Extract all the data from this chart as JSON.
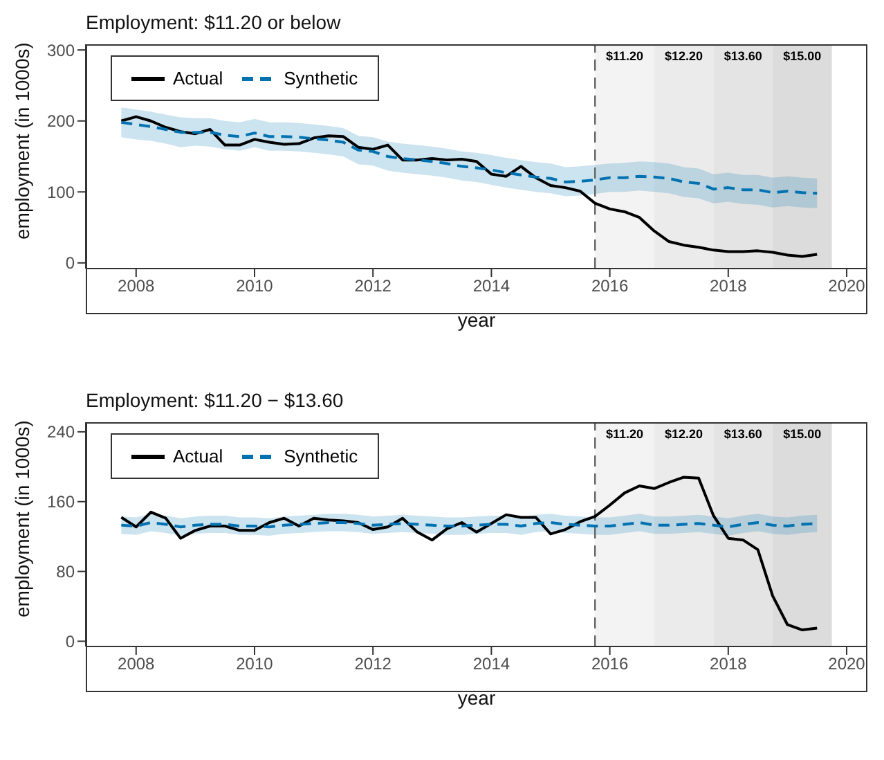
{
  "chart_data": [
    {
      "type": "line",
      "title": "Employment: $11.20 or below",
      "xlabel": "year",
      "ylabel": "employment (in 1000s)",
      "x": [
        2007.75,
        2008,
        2008.25,
        2008.5,
        2008.75,
        2009,
        2009.25,
        2009.5,
        2009.75,
        2010,
        2010.25,
        2010.5,
        2010.75,
        2011,
        2011.25,
        2011.5,
        2011.75,
        2012,
        2012.25,
        2012.5,
        2012.75,
        2013,
        2013.25,
        2013.5,
        2013.75,
        2014,
        2014.25,
        2014.5,
        2014.75,
        2015,
        2015.25,
        2015.5,
        2015.75,
        2016,
        2016.25,
        2016.5,
        2016.75,
        2017,
        2017.25,
        2017.5,
        2017.75,
        2018,
        2018.25,
        2018.5,
        2018.75,
        2019,
        2019.25,
        2019.5
      ],
      "series": [
        {
          "name": "Actual",
          "color": "#000000",
          "line_style": "solid",
          "values": [
            200,
            206,
            200,
            191,
            185,
            182,
            188,
            166,
            166,
            174,
            170,
            167,
            168,
            176,
            179,
            178,
            163,
            160,
            166,
            145,
            145,
            147,
            145,
            146,
            143,
            125,
            122,
            136,
            120,
            109,
            106,
            101,
            84,
            76,
            72,
            64,
            45,
            30,
            25,
            22,
            18,
            16,
            16,
            17,
            15,
            11,
            9,
            12
          ]
        },
        {
          "name": "Synthetic",
          "color": "#0072b2",
          "line_style": "dashed",
          "values": [
            198,
            195,
            192,
            188,
            184,
            184,
            184,
            180,
            178,
            183,
            178,
            178,
            177,
            175,
            173,
            170,
            159,
            157,
            150,
            147,
            145,
            143,
            140,
            136,
            134,
            131,
            127,
            124,
            121,
            119,
            114,
            115,
            117,
            120,
            120,
            122,
            121,
            119,
            114,
            112,
            104,
            106,
            103,
            103,
            99,
            101,
            99,
            98
          ],
          "lower": [
            177,
            174,
            172,
            168,
            163,
            165,
            164,
            160,
            158,
            163,
            158,
            158,
            157,
            155,
            153,
            150,
            139,
            137,
            130,
            127,
            125,
            123,
            120,
            116,
            114,
            110,
            106,
            103,
            100,
            98,
            94,
            95,
            97,
            100,
            100,
            102,
            100,
            98,
            93,
            91,
            84,
            86,
            83,
            82,
            78,
            80,
            78,
            77
          ],
          "upper": [
            219,
            216,
            213,
            209,
            205,
            204,
            204,
            200,
            198,
            203,
            198,
            198,
            197,
            195,
            193,
            190,
            179,
            177,
            171,
            168,
            166,
            164,
            161,
            157,
            155,
            152,
            148,
            145,
            142,
            140,
            135,
            136,
            138,
            140,
            141,
            143,
            142,
            140,
            135,
            133,
            125,
            127,
            124,
            124,
            120,
            122,
            120,
            119
          ]
        }
      ],
      "ref_lines": [
        {
          "axis": "x",
          "value": 2015.75,
          "line_style": "dashed",
          "color": "#666666"
        }
      ],
      "bands": [
        {
          "axis": "x",
          "from": 2015.75,
          "to": 2016.75,
          "label": "$11.20",
          "color": "#f3f3f3"
        },
        {
          "axis": "x",
          "from": 2016.75,
          "to": 2017.75,
          "label": "$12.20",
          "color": "#ebebeb"
        },
        {
          "axis": "x",
          "from": 2017.75,
          "to": 2018.75,
          "label": "$13.60",
          "color": "#e4e4e4"
        },
        {
          "axis": "x",
          "from": 2018.75,
          "to": 2019.75,
          "label": "$15.00",
          "color": "#dcdcdc"
        }
      ],
      "xlim": [
        2007.15,
        2020.35
      ],
      "xticks": [
        2008,
        2010,
        2012,
        2014,
        2016,
        2018,
        2020
      ],
      "ylim": [
        -8,
        308
      ],
      "yticks": [
        0,
        100,
        200,
        300
      ],
      "legend": "top left"
    },
    {
      "type": "line",
      "title": "Employment: $11.20 − $13.60",
      "xlabel": "year",
      "ylabel": "employment (in 1000s)",
      "x": [
        2007.75,
        2008,
        2008.25,
        2008.5,
        2008.75,
        2009,
        2009.25,
        2009.5,
        2009.75,
        2010,
        2010.25,
        2010.5,
        2010.75,
        2011,
        2011.25,
        2011.5,
        2011.75,
        2012,
        2012.25,
        2012.5,
        2012.75,
        2013,
        2013.25,
        2013.5,
        2013.75,
        2014,
        2014.25,
        2014.5,
        2014.75,
        2015,
        2015.25,
        2015.5,
        2015.75,
        2016,
        2016.25,
        2016.5,
        2016.75,
        2017,
        2017.25,
        2017.5,
        2017.75,
        2018,
        2018.25,
        2018.5,
        2018.75,
        2019,
        2019.25,
        2019.5
      ],
      "series": [
        {
          "name": "Actual",
          "color": "#000000",
          "line_style": "solid",
          "values": [
            142,
            131,
            148,
            141,
            118,
            127,
            132,
            132,
            127,
            127,
            136,
            141,
            132,
            141,
            139,
            138,
            136,
            128,
            131,
            141,
            125,
            116,
            129,
            136,
            125,
            135,
            145,
            142,
            142,
            123,
            128,
            137,
            143,
            156,
            170,
            178,
            175,
            182,
            188,
            187,
            144,
            118,
            116,
            105,
            52,
            19,
            13,
            15
          ]
        },
        {
          "name": "Synthetic",
          "color": "#0072b2",
          "line_style": "dashed",
          "values": [
            133,
            132,
            136,
            134,
            131,
            133,
            134,
            134,
            132,
            132,
            131,
            133,
            134,
            135,
            136,
            136,
            135,
            133,
            134,
            135,
            134,
            133,
            132,
            132,
            133,
            134,
            134,
            132,
            135,
            136,
            134,
            133,
            132,
            132,
            134,
            136,
            133,
            133,
            134,
            135,
            133,
            131,
            134,
            136,
            133,
            132,
            134,
            135
          ],
          "lower": [
            123,
            122,
            126,
            124,
            121,
            123,
            124,
            124,
            122,
            122,
            121,
            123,
            124,
            125,
            126,
            126,
            125,
            123,
            124,
            125,
            124,
            123,
            122,
            122,
            123,
            124,
            124,
            122,
            125,
            126,
            124,
            123,
            122,
            122,
            124,
            126,
            123,
            123,
            124,
            125,
            123,
            121,
            124,
            126,
            123,
            122,
            124,
            125
          ],
          "upper": [
            143,
            142,
            146,
            144,
            141,
            143,
            144,
            144,
            142,
            142,
            141,
            143,
            144,
            145,
            146,
            146,
            145,
            143,
            144,
            145,
            144,
            143,
            142,
            142,
            143,
            144,
            144,
            142,
            145,
            146,
            144,
            143,
            142,
            142,
            144,
            146,
            143,
            143,
            144,
            145,
            143,
            141,
            144,
            146,
            143,
            142,
            144,
            145
          ]
        }
      ],
      "ref_lines": [
        {
          "axis": "x",
          "value": 2015.75,
          "line_style": "dashed",
          "color": "#666666"
        }
      ],
      "bands": [
        {
          "axis": "x",
          "from": 2015.75,
          "to": 2016.75,
          "label": "$11.20",
          "color": "#f3f3f3"
        },
        {
          "axis": "x",
          "from": 2016.75,
          "to": 2017.75,
          "label": "$12.20",
          "color": "#ebebeb"
        },
        {
          "axis": "x",
          "from": 2017.75,
          "to": 2018.75,
          "label": "$13.60",
          "color": "#e4e4e4"
        },
        {
          "axis": "x",
          "from": 2018.75,
          "to": 2019.75,
          "label": "$15.00",
          "color": "#dcdcdc"
        }
      ],
      "xlim": [
        2007.15,
        2020.35
      ],
      "xticks": [
        2008,
        2010,
        2012,
        2014,
        2016,
        2018,
        2020
      ],
      "ylim": [
        -6,
        251
      ],
      "yticks": [
        0,
        80,
        160,
        240
      ],
      "legend": "top left"
    }
  ]
}
